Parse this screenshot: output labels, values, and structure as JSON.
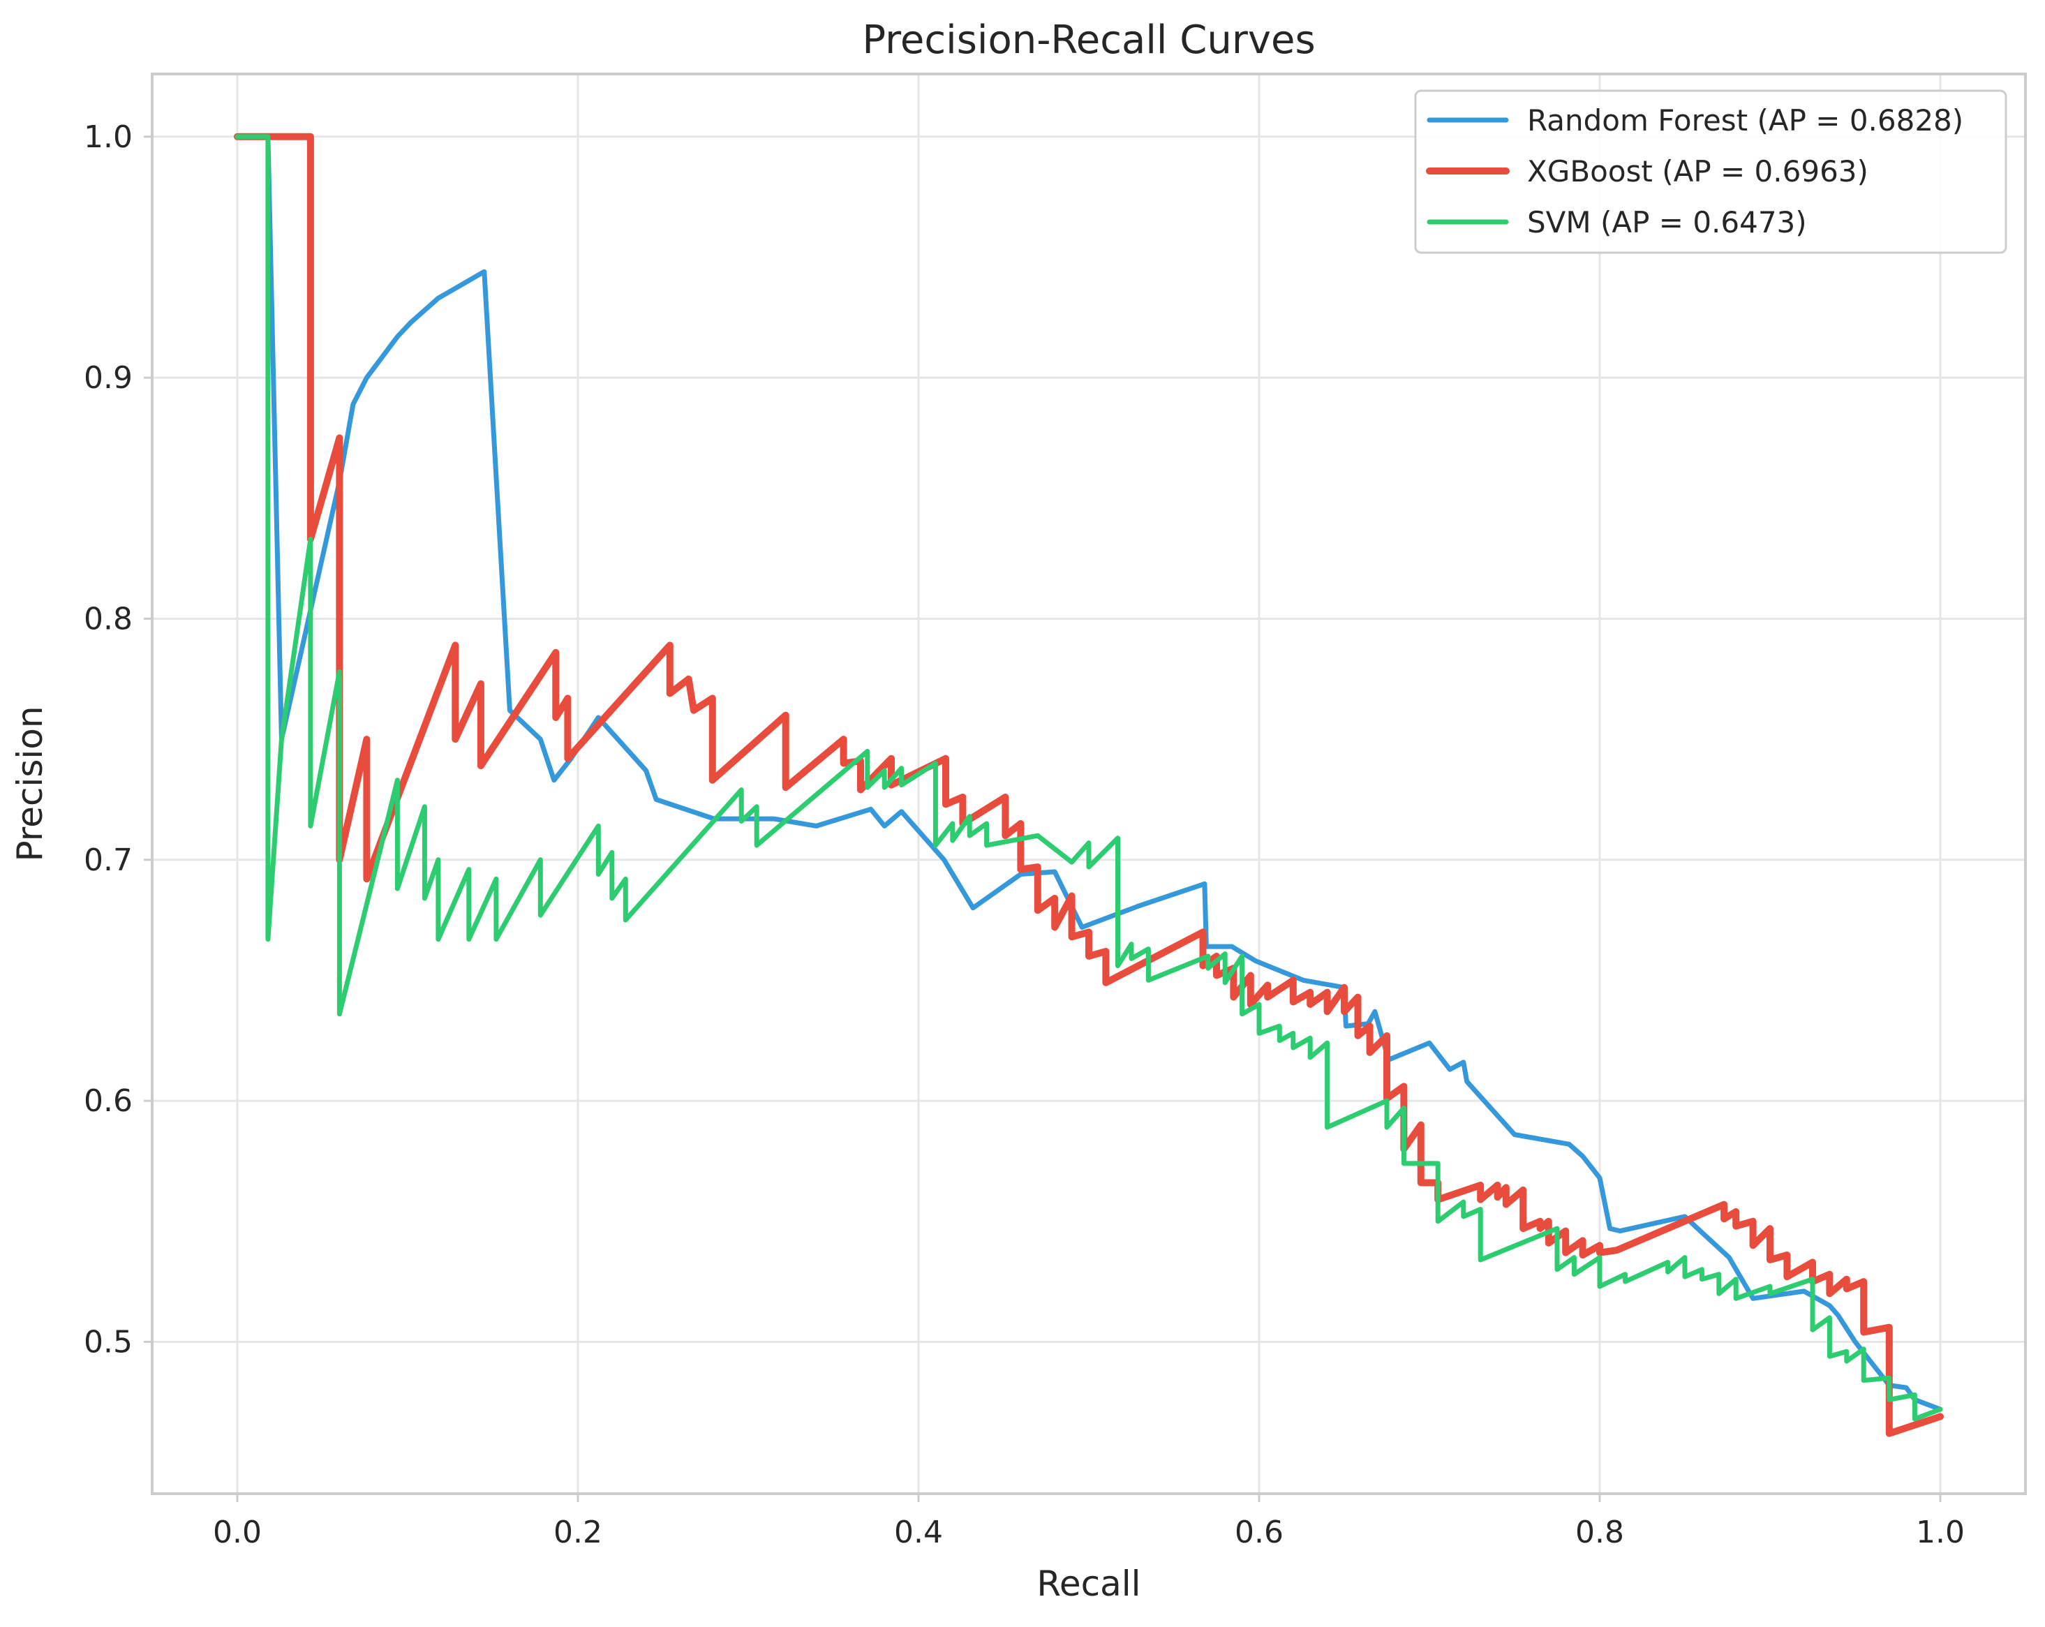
{
  "chart_data": {
    "type": "line",
    "title": "Precision-Recall Curves",
    "xlabel": "Recall",
    "ylabel": "Precision",
    "xlim": [
      -0.05,
      1.05
    ],
    "ylim": [
      0.437,
      1.026
    ],
    "xticks": [
      0.0,
      0.2,
      0.4,
      0.6,
      0.8,
      1.0
    ],
    "xtick_labels": [
      "0.0",
      "0.2",
      "0.4",
      "0.6",
      "0.8",
      "1.0"
    ],
    "yticks": [
      0.5,
      0.6,
      0.7,
      0.8,
      0.9,
      1.0
    ],
    "ytick_labels": [
      "0.5",
      "0.6",
      "0.7",
      "0.8",
      "0.9",
      "1.0"
    ],
    "grid": true,
    "legend_position": "top-right",
    "series": [
      {
        "name": "Random Forest (AP = 0.6828)",
        "color": "#3498db",
        "width": 2,
        "points": [
          [
            0.0,
            1.0
          ],
          [
            0.018,
            1.0
          ],
          [
            0.026,
            0.75
          ],
          [
            0.06,
            0.857
          ],
          [
            0.068,
            0.889
          ],
          [
            0.076,
            0.9
          ],
          [
            0.094,
            0.917
          ],
          [
            0.102,
            0.923
          ],
          [
            0.118,
            0.933
          ],
          [
            0.145,
            0.944
          ],
          [
            0.16,
            0.762
          ],
          [
            0.178,
            0.75
          ],
          [
            0.186,
            0.733
          ],
          [
            0.196,
            0.742
          ],
          [
            0.212,
            0.759
          ],
          [
            0.24,
            0.737
          ],
          [
            0.246,
            0.725
          ],
          [
            0.28,
            0.717
          ],
          [
            0.315,
            0.717
          ],
          [
            0.34,
            0.714
          ],
          [
            0.372,
            0.721
          ],
          [
            0.38,
            0.714
          ],
          [
            0.39,
            0.72
          ],
          [
            0.415,
            0.7
          ],
          [
            0.432,
            0.68
          ],
          [
            0.46,
            0.694
          ],
          [
            0.48,
            0.695
          ],
          [
            0.496,
            0.672
          ],
          [
            0.53,
            0.681
          ],
          [
            0.568,
            0.69
          ],
          [
            0.569,
            0.664
          ],
          [
            0.584,
            0.664
          ],
          [
            0.598,
            0.658
          ],
          [
            0.626,
            0.65
          ],
          [
            0.65,
            0.647
          ],
          [
            0.651,
            0.631
          ],
          [
            0.664,
            0.632
          ],
          [
            0.668,
            0.637
          ],
          [
            0.676,
            0.617
          ],
          [
            0.7,
            0.624
          ],
          [
            0.712,
            0.613
          ],
          [
            0.72,
            0.616
          ],
          [
            0.722,
            0.608
          ],
          [
            0.75,
            0.586
          ],
          [
            0.782,
            0.582
          ],
          [
            0.79,
            0.577
          ],
          [
            0.8,
            0.568
          ],
          [
            0.806,
            0.547
          ],
          [
            0.812,
            0.546
          ],
          [
            0.85,
            0.552
          ],
          [
            0.856,
            0.548
          ],
          [
            0.876,
            0.535
          ],
          [
            0.89,
            0.518
          ],
          [
            0.92,
            0.521
          ],
          [
            0.935,
            0.515
          ],
          [
            0.94,
            0.511
          ],
          [
            0.95,
            0.5
          ],
          [
            0.97,
            0.482
          ],
          [
            0.98,
            0.481
          ],
          [
            0.985,
            0.476
          ],
          [
            1.0,
            0.472
          ]
        ]
      },
      {
        "name": "XGBoost (AP = 0.6963)",
        "color": "#e74c3c",
        "width": 3,
        "points": [
          [
            0.0,
            1.0
          ],
          [
            0.043,
            1.0
          ],
          [
            0.043,
            0.833
          ],
          [
            0.06,
            0.875
          ],
          [
            0.06,
            0.7
          ],
          [
            0.076,
            0.75
          ],
          [
            0.076,
            0.692
          ],
          [
            0.128,
            0.789
          ],
          [
            0.128,
            0.75
          ],
          [
            0.143,
            0.773
          ],
          [
            0.143,
            0.739
          ],
          [
            0.187,
            0.786
          ],
          [
            0.187,
            0.759
          ],
          [
            0.194,
            0.767
          ],
          [
            0.194,
            0.742
          ],
          [
            0.254,
            0.789
          ],
          [
            0.254,
            0.769
          ],
          [
            0.265,
            0.775
          ],
          [
            0.268,
            0.762
          ],
          [
            0.279,
            0.767
          ],
          [
            0.279,
            0.733
          ],
          [
            0.322,
            0.76
          ],
          [
            0.322,
            0.73
          ],
          [
            0.356,
            0.75
          ],
          [
            0.356,
            0.74
          ],
          [
            0.366,
            0.741
          ],
          [
            0.366,
            0.729
          ],
          [
            0.384,
            0.742
          ],
          [
            0.384,
            0.731
          ],
          [
            0.416,
            0.742
          ],
          [
            0.416,
            0.723
          ],
          [
            0.426,
            0.726
          ],
          [
            0.426,
            0.715
          ],
          [
            0.451,
            0.726
          ],
          [
            0.451,
            0.71
          ],
          [
            0.46,
            0.715
          ],
          [
            0.46,
            0.696
          ],
          [
            0.47,
            0.697
          ],
          [
            0.47,
            0.679
          ],
          [
            0.48,
            0.684
          ],
          [
            0.48,
            0.672
          ],
          [
            0.49,
            0.685
          ],
          [
            0.49,
            0.668
          ],
          [
            0.5,
            0.67
          ],
          [
            0.5,
            0.66
          ],
          [
            0.51,
            0.662
          ],
          [
            0.51,
            0.649
          ],
          [
            0.567,
            0.67
          ],
          [
            0.567,
            0.656
          ],
          [
            0.575,
            0.66
          ],
          [
            0.575,
            0.652
          ],
          [
            0.585,
            0.655
          ],
          [
            0.585,
            0.643
          ],
          [
            0.595,
            0.652
          ],
          [
            0.595,
            0.64
          ],
          [
            0.605,
            0.648
          ],
          [
            0.605,
            0.643
          ],
          [
            0.62,
            0.65
          ],
          [
            0.62,
            0.641
          ],
          [
            0.63,
            0.645
          ],
          [
            0.63,
            0.64
          ],
          [
            0.64,
            0.645
          ],
          [
            0.64,
            0.637
          ],
          [
            0.65,
            0.647
          ],
          [
            0.65,
            0.637
          ],
          [
            0.658,
            0.643
          ],
          [
            0.658,
            0.627
          ],
          [
            0.665,
            0.631
          ],
          [
            0.665,
            0.62
          ],
          [
            0.675,
            0.627
          ],
          [
            0.675,
            0.601
          ],
          [
            0.685,
            0.606
          ],
          [
            0.685,
            0.58
          ],
          [
            0.695,
            0.59
          ],
          [
            0.695,
            0.566
          ],
          [
            0.705,
            0.566
          ],
          [
            0.705,
            0.559
          ],
          [
            0.73,
            0.565
          ],
          [
            0.73,
            0.559
          ],
          [
            0.74,
            0.565
          ],
          [
            0.74,
            0.56
          ],
          [
            0.745,
            0.564
          ],
          [
            0.745,
            0.557
          ],
          [
            0.755,
            0.563
          ],
          [
            0.755,
            0.547
          ],
          [
            0.765,
            0.55
          ],
          [
            0.765,
            0.547
          ],
          [
            0.77,
            0.55
          ],
          [
            0.77,
            0.541
          ],
          [
            0.78,
            0.546
          ],
          [
            0.78,
            0.537
          ],
          [
            0.79,
            0.542
          ],
          [
            0.79,
            0.536
          ],
          [
            0.8,
            0.54
          ],
          [
            0.8,
            0.537
          ],
          [
            0.81,
            0.538
          ],
          [
            0.873,
            0.557
          ],
          [
            0.873,
            0.551
          ],
          [
            0.88,
            0.554
          ],
          [
            0.88,
            0.548
          ],
          [
            0.89,
            0.55
          ],
          [
            0.89,
            0.54
          ],
          [
            0.9,
            0.547
          ],
          [
            0.9,
            0.534
          ],
          [
            0.91,
            0.536
          ],
          [
            0.91,
            0.527
          ],
          [
            0.925,
            0.533
          ],
          [
            0.925,
            0.525
          ],
          [
            0.935,
            0.528
          ],
          [
            0.935,
            0.52
          ],
          [
            0.945,
            0.526
          ],
          [
            0.945,
            0.522
          ],
          [
            0.955,
            0.525
          ],
          [
            0.955,
            0.504
          ],
          [
            0.97,
            0.506
          ],
          [
            0.97,
            0.462
          ],
          [
            1.0,
            0.469
          ]
        ]
      },
      {
        "name": "SVM (AP = 0.6473)",
        "color": "#2ecc71",
        "width": 2,
        "points": [
          [
            0.0,
            1.0
          ],
          [
            0.018,
            1.0
          ],
          [
            0.018,
            0.667
          ],
          [
            0.026,
            0.75
          ],
          [
            0.043,
            0.833
          ],
          [
            0.043,
            0.714
          ],
          [
            0.06,
            0.778
          ],
          [
            0.06,
            0.636
          ],
          [
            0.094,
            0.733
          ],
          [
            0.094,
            0.688
          ],
          [
            0.11,
            0.722
          ],
          [
            0.11,
            0.684
          ],
          [
            0.118,
            0.7
          ],
          [
            0.118,
            0.667
          ],
          [
            0.136,
            0.696
          ],
          [
            0.136,
            0.667
          ],
          [
            0.152,
            0.692
          ],
          [
            0.152,
            0.667
          ],
          [
            0.178,
            0.7
          ],
          [
            0.178,
            0.677
          ],
          [
            0.212,
            0.714
          ],
          [
            0.212,
            0.694
          ],
          [
            0.22,
            0.703
          ],
          [
            0.22,
            0.684
          ],
          [
            0.228,
            0.692
          ],
          [
            0.228,
            0.675
          ],
          [
            0.296,
            0.729
          ],
          [
            0.296,
            0.716
          ],
          [
            0.305,
            0.722
          ],
          [
            0.305,
            0.706
          ],
          [
            0.37,
            0.745
          ],
          [
            0.37,
            0.73
          ],
          [
            0.38,
            0.737
          ],
          [
            0.38,
            0.73
          ],
          [
            0.39,
            0.738
          ],
          [
            0.39,
            0.731
          ],
          [
            0.41,
            0.74
          ],
          [
            0.41,
            0.706
          ],
          [
            0.42,
            0.715
          ],
          [
            0.42,
            0.708
          ],
          [
            0.43,
            0.718
          ],
          [
            0.43,
            0.71
          ],
          [
            0.44,
            0.715
          ],
          [
            0.44,
            0.706
          ],
          [
            0.47,
            0.71
          ],
          [
            0.49,
            0.699
          ],
          [
            0.5,
            0.707
          ],
          [
            0.5,
            0.697
          ],
          [
            0.517,
            0.709
          ],
          [
            0.517,
            0.656
          ],
          [
            0.525,
            0.665
          ],
          [
            0.525,
            0.659
          ],
          [
            0.535,
            0.663
          ],
          [
            0.535,
            0.65
          ],
          [
            0.57,
            0.66
          ],
          [
            0.57,
            0.655
          ],
          [
            0.58,
            0.661
          ],
          [
            0.58,
            0.649
          ],
          [
            0.59,
            0.66
          ],
          [
            0.59,
            0.636
          ],
          [
            0.6,
            0.64
          ],
          [
            0.6,
            0.628
          ],
          [
            0.612,
            0.631
          ],
          [
            0.612,
            0.625
          ],
          [
            0.62,
            0.628
          ],
          [
            0.62,
            0.622
          ],
          [
            0.63,
            0.626
          ],
          [
            0.63,
            0.618
          ],
          [
            0.64,
            0.624
          ],
          [
            0.64,
            0.589
          ],
          [
            0.675,
            0.6
          ],
          [
            0.675,
            0.589
          ],
          [
            0.685,
            0.597
          ],
          [
            0.685,
            0.574
          ],
          [
            0.705,
            0.574
          ],
          [
            0.705,
            0.55
          ],
          [
            0.72,
            0.558
          ],
          [
            0.72,
            0.552
          ],
          [
            0.73,
            0.555
          ],
          [
            0.73,
            0.534
          ],
          [
            0.775,
            0.547
          ],
          [
            0.775,
            0.53
          ],
          [
            0.785,
            0.535
          ],
          [
            0.785,
            0.528
          ],
          [
            0.8,
            0.535
          ],
          [
            0.8,
            0.523
          ],
          [
            0.815,
            0.528
          ],
          [
            0.815,
            0.525
          ],
          [
            0.84,
            0.533
          ],
          [
            0.84,
            0.529
          ],
          [
            0.85,
            0.535
          ],
          [
            0.85,
            0.527
          ],
          [
            0.86,
            0.53
          ],
          [
            0.86,
            0.526
          ],
          [
            0.87,
            0.528
          ],
          [
            0.87,
            0.52
          ],
          [
            0.88,
            0.526
          ],
          [
            0.88,
            0.518
          ],
          [
            0.9,
            0.523
          ],
          [
            0.9,
            0.52
          ],
          [
            0.925,
            0.526
          ],
          [
            0.925,
            0.505
          ],
          [
            0.935,
            0.51
          ],
          [
            0.935,
            0.494
          ],
          [
            0.945,
            0.496
          ],
          [
            0.945,
            0.492
          ],
          [
            0.955,
            0.497
          ],
          [
            0.955,
            0.484
          ],
          [
            0.97,
            0.485
          ],
          [
            0.97,
            0.476
          ],
          [
            0.985,
            0.478
          ],
          [
            0.985,
            0.468
          ],
          [
            1.0,
            0.472
          ]
        ]
      }
    ]
  }
}
